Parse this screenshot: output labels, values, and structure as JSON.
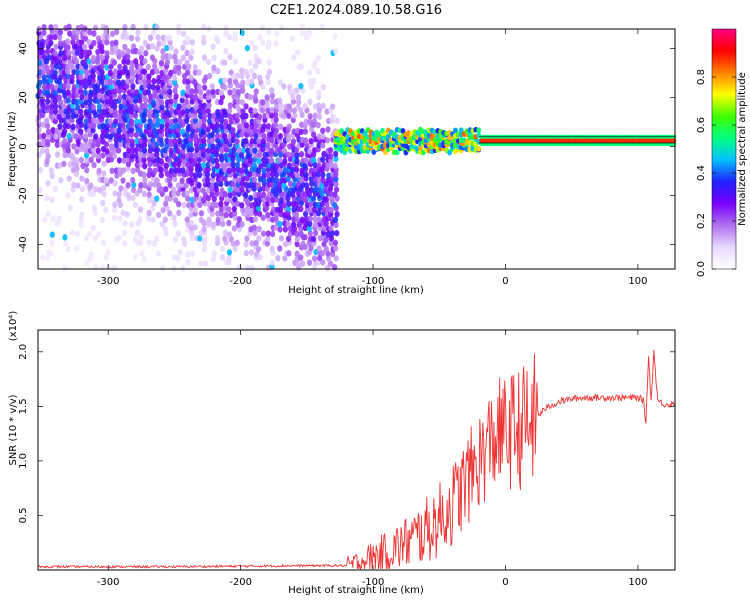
{
  "figure": {
    "title": "C2E1.2024.089.10.58.G16"
  },
  "chart_data": [
    {
      "type": "heatmap",
      "xlabel": "Height of straight line (km)",
      "ylabel": "Frequency (Hz)",
      "xlim": [
        -353,
        128
      ],
      "ylim": [
        -50,
        48
      ],
      "xticks": [
        -300,
        -200,
        -100,
        0,
        100
      ],
      "yticks": [
        -40,
        -20,
        0,
        20,
        40
      ],
      "colorbar": {
        "label": "Normalized spectral amplitude",
        "range": [
          0.0,
          1.0
        ],
        "ticks": [
          0.0,
          0.2,
          0.4,
          0.6,
          0.8
        ],
        "tick_labels": [
          "0.0",
          "0.2",
          "0.4",
          "0.6",
          "0.8"
        ],
        "colormap": [
          "#ffffff",
          "#e8d8ff",
          "#b070f0",
          "#7a00ff",
          "#2020ff",
          "#00c0ff",
          "#00ff80",
          "#40ff00",
          "#ffff00",
          "#ff8000",
          "#ff0000",
          "#ff0080"
        ]
      },
      "regions": [
        {
          "x": [
            -353,
            -128
          ],
          "f_trend": [
            -50,
            48
          ],
          "amplitude_range": [
            0.05,
            0.3
          ]
        },
        {
          "x": [
            -128,
            128
          ],
          "f_center": 1.5,
          "amplitude_range": [
            0.4,
            1.0
          ]
        }
      ],
      "grid": false
    },
    {
      "type": "line",
      "xlabel": "Height of straight line (km)",
      "ylabel": "SNR (10 * v/v)",
      "y_multiplier": "(x10⁴)",
      "xlim": [
        -353,
        128
      ],
      "ylim": [
        0,
        2.2
      ],
      "xticks": [
        -300,
        -200,
        -100,
        0,
        100
      ],
      "yticks": [
        0.5,
        1.0,
        1.5,
        2.0
      ],
      "ytick_labels": [
        "0.5",
        "1.0",
        "1.5",
        "2.0"
      ],
      "series": [
        {
          "color": "#ee3333",
          "x": [
            -353,
            -300,
            -250,
            -200,
            -150,
            -120,
            -110,
            -100,
            -90,
            -80,
            -70,
            -60,
            -50,
            -40,
            -30,
            -20,
            -10,
            -5,
            0,
            5,
            10,
            15,
            20,
            25,
            30,
            40,
            50,
            60,
            70,
            80,
            90,
            100,
            104,
            106,
            108,
            110,
            112,
            115,
            120,
            128
          ],
          "y": [
            0.03,
            0.03,
            0.03,
            0.035,
            0.04,
            0.04,
            0.07,
            0.12,
            0.16,
            0.22,
            0.28,
            0.36,
            0.46,
            0.6,
            0.8,
            1.0,
            1.2,
            1.25,
            1.25,
            1.28,
            1.3,
            1.32,
            1.36,
            1.42,
            1.48,
            1.54,
            1.57,
            1.58,
            1.58,
            1.58,
            1.58,
            1.58,
            1.56,
            1.35,
            1.95,
            1.55,
            2.0,
            1.55,
            1.52,
            1.52
          ]
        }
      ],
      "grid": false
    }
  ]
}
